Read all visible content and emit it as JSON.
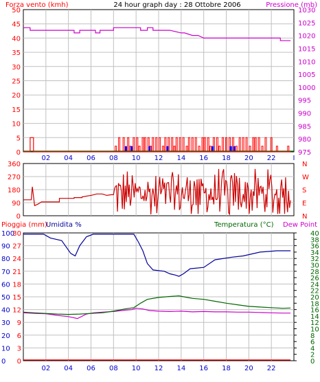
{
  "colors": {
    "wind": "#ff0000",
    "gust": "#ff0000",
    "gust_bar": "#0000ff",
    "pressure": "#cc00cc",
    "direction": "#cc0000",
    "humidity": "#000099",
    "temperature": "#006600",
    "dewpoint": "#cc00cc",
    "rain": "#ff0000",
    "grid": "#c0c0c0",
    "text_red": "#ff0000",
    "text_blue": "#0000cc",
    "text_magenta": "#cc00cc",
    "text_green": "#006600",
    "text_black": "#000000"
  },
  "chart_data": [
    {
      "type": "line",
      "title": "24 hour graph day : 28 Ottobre 2006",
      "ylabel_left": "Forza vento (kmh)",
      "ylabel_right": "Pressione (mb)",
      "yticks_left": [
        "0",
        "5",
        "10",
        "15",
        "20",
        "25",
        "30",
        "35",
        "40",
        "45",
        "50"
      ],
      "yticks_right": [
        "975",
        "980",
        "985",
        "990",
        "995",
        "1000",
        "1005",
        "1010",
        "1015",
        "1020",
        "1025",
        "1030"
      ],
      "xticks": [
        "02",
        "04",
        "06",
        "08",
        "10",
        "12",
        "14",
        "16",
        "18",
        "20",
        "22",
        "I"
      ],
      "ylim_left": [
        0,
        50
      ],
      "ylim_right": [
        975,
        1030
      ],
      "xlim": [
        0,
        24
      ],
      "grid": true,
      "series": [
        {
          "name": "Pressione (mb)",
          "axis": "right",
          "x": [
            0,
            0.6,
            0.6,
            4.5,
            4.5,
            5,
            5,
            6.4,
            6.4,
            6.8,
            6.8,
            6.8,
            7,
            7,
            8,
            8,
            10.4,
            10.4,
            11,
            11,
            11.5,
            11.5,
            13,
            14,
            14.3,
            15,
            15.5,
            16,
            16.5,
            16.5,
            17,
            17,
            20,
            20,
            22.8,
            22.8,
            23.7
          ],
          "y": [
            1023,
            1023,
            1022,
            1022,
            1021,
            1021,
            1022,
            1022,
            1021,
            1021,
            1022,
            1022,
            1022,
            1022,
            1022,
            1023,
            1023,
            1022,
            1022,
            1023,
            1023,
            1022,
            1022,
            1021,
            1021,
            1020,
            1020,
            1019,
            1019,
            1019,
            1019,
            1019,
            1019,
            1019,
            1019,
            1018,
            1018
          ]
        },
        {
          "name": "Forza vento",
          "axis": "left",
          "x": [
            0,
            0.6,
            0.6,
            0.9,
            0.9,
            23.7
          ],
          "y": [
            0,
            0,
            5,
            5,
            0,
            0
          ]
        }
      ],
      "gust_bars_red": [
        [
          8.2,
          2
        ],
        [
          8.5,
          5
        ],
        [
          8.9,
          5
        ],
        [
          9.3,
          5
        ],
        [
          9.5,
          2
        ],
        [
          9.8,
          5
        ],
        [
          10.1,
          5
        ],
        [
          10.3,
          2
        ],
        [
          10.6,
          5
        ],
        [
          10.8,
          5
        ],
        [
          11.1,
          5
        ],
        [
          11.3,
          2
        ],
        [
          11.5,
          5
        ],
        [
          11.8,
          5
        ],
        [
          12.1,
          5
        ],
        [
          12.4,
          2
        ],
        [
          12.6,
          5
        ],
        [
          12.9,
          5
        ],
        [
          13.2,
          5
        ],
        [
          13.4,
          2
        ],
        [
          13.6,
          5
        ],
        [
          13.9,
          5
        ],
        [
          14.2,
          5
        ],
        [
          14.5,
          2
        ],
        [
          14.7,
          5
        ],
        [
          15,
          5
        ],
        [
          15.3,
          5
        ],
        [
          15.6,
          2
        ],
        [
          15.9,
          5
        ],
        [
          16.1,
          5
        ],
        [
          16.4,
          5
        ],
        [
          16.6,
          2
        ],
        [
          16.9,
          5
        ],
        [
          17.2,
          5
        ],
        [
          17.4,
          2
        ],
        [
          17.7,
          5
        ],
        [
          18,
          5
        ],
        [
          18.3,
          5
        ],
        [
          18.6,
          5
        ],
        [
          18.9,
          2
        ],
        [
          19.2,
          5
        ],
        [
          19.5,
          5
        ],
        [
          19.8,
          5
        ],
        [
          20.1,
          2
        ],
        [
          20.4,
          5
        ],
        [
          20.6,
          5
        ],
        [
          20.9,
          5
        ],
        [
          21.2,
          2
        ],
        [
          21.5,
          5
        ],
        [
          22,
          5
        ],
        [
          22.5,
          2
        ],
        [
          23.5,
          2
        ]
      ],
      "gust_bars_blue": [
        [
          9.1,
          2
        ],
        [
          9.6,
          2
        ],
        [
          11.2,
          2
        ],
        [
          12.8,
          2
        ],
        [
          16.8,
          2
        ],
        [
          18.4,
          2
        ],
        [
          18.7,
          2
        ]
      ]
    },
    {
      "type": "line",
      "title": "",
      "yticks": [
        "0",
        "90",
        "180",
        "270",
        "360"
      ],
      "compass": [
        "N",
        "W",
        "S",
        "E",
        "N"
      ],
      "ylim": [
        0,
        360
      ],
      "xlim": [
        0,
        24
      ],
      "grid": true,
      "series": [
        {
          "name": "",
          "x": [
            0,
            0.7,
            0.8,
            1.0,
            1.3,
            1.6,
            3.2,
            3.2,
            4.5,
            4.5,
            5.2,
            5.2,
            6.0,
            6.5,
            7.0,
            7.4,
            7.8,
            8.0
          ],
          "y": [
            110,
            110,
            200,
            70,
            80,
            95,
            95,
            120,
            120,
            125,
            125,
            130,
            140,
            150,
            150,
            140,
            145,
            145
          ]
        }
      ],
      "noisy_segment": {
        "x_start": 8.0,
        "x_end": 23.7,
        "min": 0,
        "max": 350,
        "center": 150
      }
    },
    {
      "type": "line",
      "title": "",
      "ylabel_left": "Pioggia (mm)",
      "ylabel_left2": "Umidita %",
      "ylabel_right": "Temperatura (°C)",
      "ylabel_right2": "Dew Point",
      "yticks_left_rain": [
        "0",
        "3",
        "6",
        "9",
        "12",
        "15",
        "18",
        "21",
        "24",
        "27",
        "30"
      ],
      "yticks_left_hum": [
        "0",
        "10",
        "20",
        "30",
        "40",
        "50",
        "60",
        "70",
        "80",
        "90",
        "100"
      ],
      "yticks_right": [
        "0",
        "2",
        "4",
        "6",
        "8",
        "10",
        "12",
        "14",
        "16",
        "18",
        "20",
        "22",
        "24",
        "26",
        "28",
        "30",
        "32",
        "34",
        "36",
        "38",
        "40"
      ],
      "xticks": [
        "02",
        "04",
        "06",
        "08",
        "10",
        "12",
        "14",
        "16",
        "18",
        "20",
        "22"
      ],
      "ylim_hum": [
        0,
        100
      ],
      "ylim_temp": [
        0,
        40
      ],
      "xlim": [
        0,
        24
      ],
      "grid": true,
      "series": [
        {
          "name": "Umidita %",
          "axis": "hum",
          "x": [
            0,
            1.0,
            1.8,
            2.4,
            3.4,
            4.2,
            4.6,
            5.0,
            5.6,
            6.2,
            9.8,
            10.2,
            10.6,
            11.0,
            11.5,
            12.5,
            13.0,
            13.5,
            13.8,
            14.2,
            14.8,
            16.0,
            17.0,
            18.5,
            19.5,
            21.0,
            22.5,
            23.7
          ],
          "y": [
            99,
            99,
            99,
            96,
            94,
            84,
            82,
            90,
            97,
            99,
            99,
            93,
            86,
            76,
            71,
            70,
            68,
            67,
            66,
            68,
            72,
            73,
            79,
            81,
            82,
            85,
            86,
            86
          ]
        },
        {
          "name": "Temperatura (°C)",
          "axis": "temp",
          "x": [
            0,
            1.0,
            2.0,
            3.0,
            4.0,
            5.0,
            6.0,
            7.0,
            8.0,
            9.0,
            9.8,
            10.4,
            11.0,
            12.0,
            13.0,
            13.8,
            14.4,
            15.0,
            16.0,
            17.0,
            18.0,
            19.0,
            20.0,
            21.0,
            22.0,
            23.0,
            23.7
          ],
          "y": [
            15.2,
            15.0,
            14.8,
            14.6,
            14.5,
            14.6,
            14.8,
            15.0,
            15.5,
            16.2,
            16.6,
            18.0,
            19.2,
            19.8,
            20.1,
            20.3,
            19.9,
            19.5,
            19.2,
            18.6,
            18.0,
            17.5,
            17.0,
            16.8,
            16.6,
            16.4,
            16.5
          ]
        },
        {
          "name": "Dew Point",
          "axis": "temp",
          "x": [
            0,
            1.0,
            2.0,
            3.0,
            4.0,
            4.8,
            5.6,
            6.2,
            7.0,
            8.0,
            9.0,
            9.6,
            10.0,
            10.6,
            11.2,
            12.0,
            13.0,
            14.0,
            15.0,
            16.0,
            17.0,
            18.0,
            19.0,
            20.0,
            21.0,
            22.0,
            23.0,
            23.7
          ],
          "y": [
            15.0,
            14.8,
            14.7,
            14.2,
            13.8,
            13.2,
            14.6,
            15.0,
            15.2,
            15.4,
            15.8,
            16.0,
            16.4,
            16.2,
            15.7,
            15.5,
            15.4,
            15.5,
            15.3,
            15.4,
            15.3,
            15.3,
            15.2,
            15.2,
            15.1,
            15.0,
            14.9,
            14.9
          ]
        },
        {
          "name": "Pioggia (mm)",
          "axis": "hum",
          "x": [
            0,
            23.7
          ],
          "y": [
            0,
            0
          ]
        }
      ]
    }
  ]
}
